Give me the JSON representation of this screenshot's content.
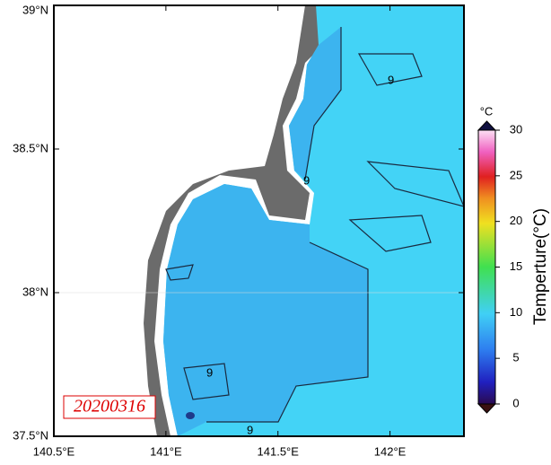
{
  "map": {
    "lon_lim": [
      140.5,
      142.33
    ],
    "lat_lim": [
      37.5,
      39
    ],
    "lon_ticks": [
      {
        "value": 140.5,
        "label": "140.5°E"
      },
      {
        "value": 141,
        "label": "141°E"
      },
      {
        "value": 141.5,
        "label": "141.5°E"
      },
      {
        "value": 142,
        "label": "142°E"
      }
    ],
    "lat_ticks": [
      {
        "value": 37.5,
        "label": "37.5°N"
      },
      {
        "value": 38,
        "label": "38°N"
      },
      {
        "value": 38.5,
        "label": "38.5°N"
      },
      {
        "value": 39,
        "label": "39°N"
      }
    ],
    "date": "20200316",
    "contour_label": "9",
    "colorbar": {
      "unit": "°C",
      "label": "Temperture(°C)",
      "lim": [
        0,
        30
      ],
      "ticks": [
        0,
        5,
        10,
        15,
        20,
        25,
        30
      ]
    }
  }
}
